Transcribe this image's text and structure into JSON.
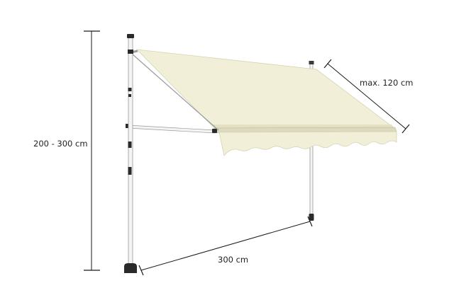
{
  "dimensions": {
    "height_label": "200 - 300 cm",
    "width_label": "300 cm",
    "projection_label": "max. 120 cm"
  },
  "colors": {
    "fabric": "#f1efd8",
    "fabric_shade": "#e3e0c4",
    "fabric_edge": "#d6d3b4",
    "pole": "#f4f4f4",
    "pole_outline": "#9a9a9a",
    "fittings": "#2a2a2a",
    "dimension_line": "#1a1a1a"
  }
}
